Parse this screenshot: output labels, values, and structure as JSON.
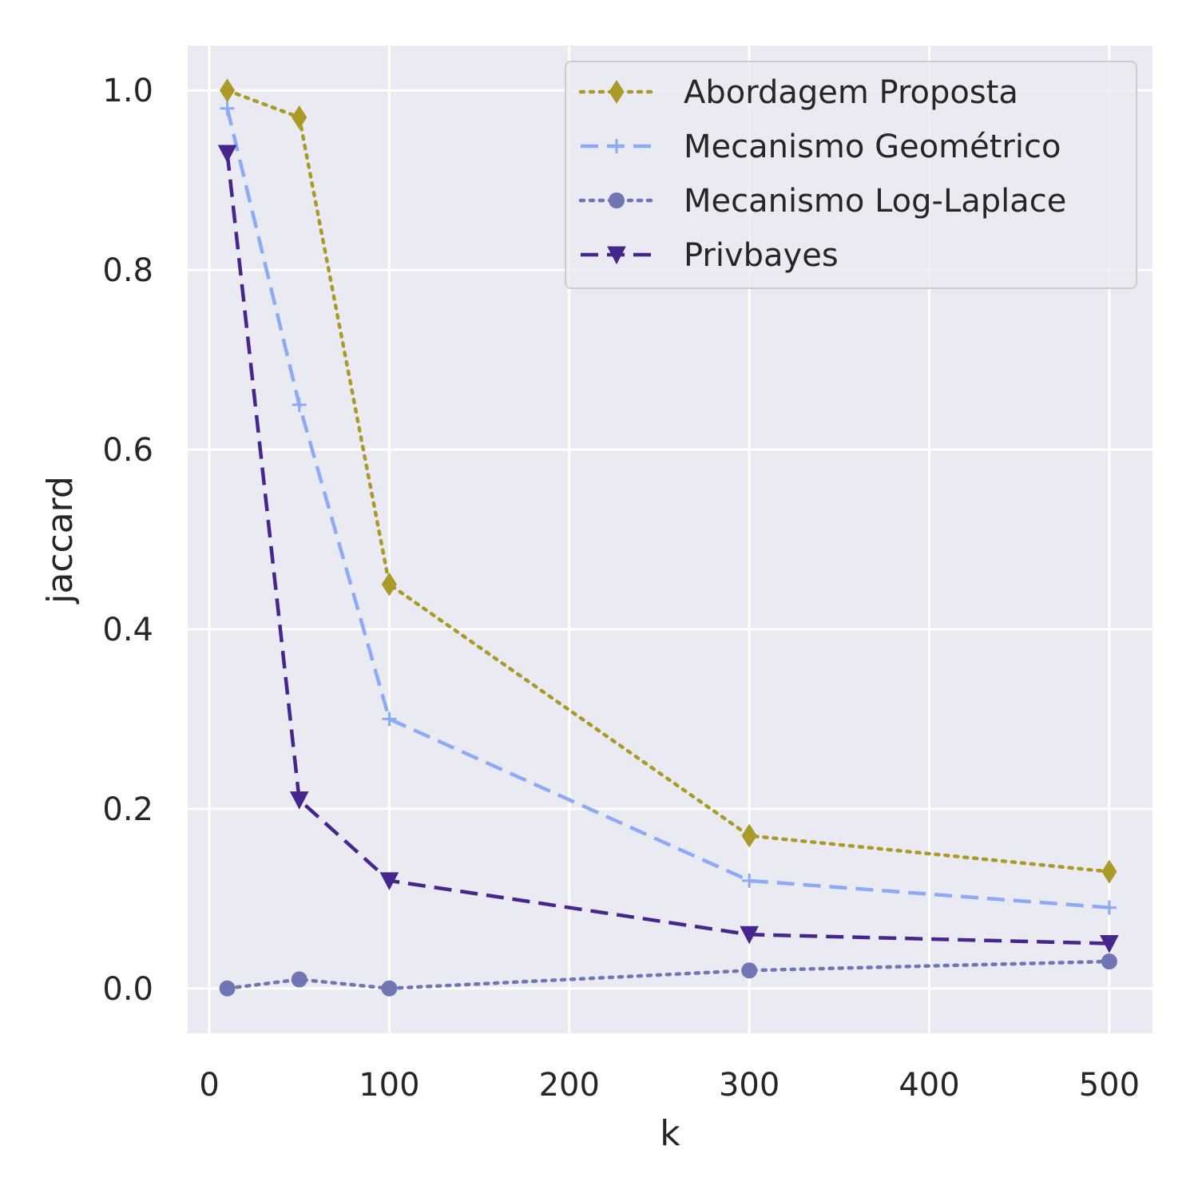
{
  "chart_data": {
    "type": "line",
    "title": "",
    "xlabel": "k",
    "ylabel": "jaccard",
    "xlim": [
      -12,
      524
    ],
    "ylim": [
      -0.05,
      1.05
    ],
    "xticks": [
      0,
      100,
      200,
      300,
      400,
      500
    ],
    "xtick_labels": [
      "0",
      "100",
      "200",
      "300",
      "400",
      "500"
    ],
    "yticks": [
      0.0,
      0.2,
      0.4,
      0.6,
      0.8,
      1.0
    ],
    "ytick_labels": [
      "0.0",
      "0.2",
      "0.4",
      "0.6",
      "0.8",
      "1.0"
    ],
    "grid": true,
    "background": "#eaeaf2",
    "legend_position": "top-right",
    "x": [
      10,
      50,
      100,
      300,
      500
    ],
    "series": [
      {
        "name": "Abordagem Proposta",
        "values": [
          1.0,
          0.97,
          0.45,
          0.17,
          0.13
        ],
        "color": "#aa9a28",
        "linestyle": "dotted",
        "marker": "thin-diamond"
      },
      {
        "name": "Mecanismo Geométrico",
        "values": [
          0.98,
          0.65,
          0.3,
          0.12,
          0.09
        ],
        "color": "#8eaaf5",
        "linestyle": "dashed",
        "marker": "plus"
      },
      {
        "name": "Mecanismo Log-Laplace",
        "values": [
          0.0,
          0.01,
          0.0,
          0.02,
          0.03
        ],
        "color": "#7075b3",
        "linestyle": "dotted",
        "marker": "circle"
      },
      {
        "name": "Privbayes",
        "values": [
          0.93,
          0.21,
          0.12,
          0.06,
          0.05
        ],
        "color": "#46258c",
        "linestyle": "dashed",
        "marker": "triangle-down"
      }
    ]
  }
}
